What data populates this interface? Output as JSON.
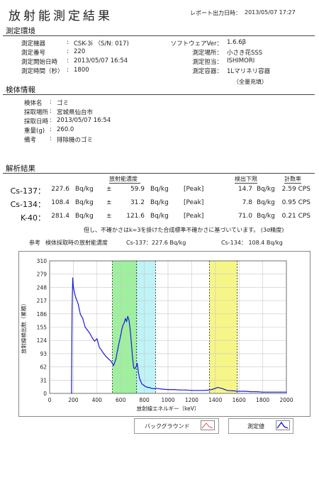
{
  "header": {
    "title": "放射能測定結果",
    "report_label": "レポート出力日時：",
    "report_datetime": "2013/05/07 17:27"
  },
  "measurement_env": {
    "section_title": "測定環境",
    "left": [
      {
        "label": "測定機器",
        "value": "CSK-3i （S/N: 017)"
      },
      {
        "label": "測定番号",
        "value": "220"
      },
      {
        "label": "測定開始日時",
        "value": "2013/05/07 16:54"
      },
      {
        "label": "測定時間（秒）",
        "value": "1800"
      }
    ],
    "right": [
      {
        "label": "ソフトウェアVer：",
        "value": "1.6.6β"
      },
      {
        "label": "測定場所：",
        "value": "小さき花SSS"
      },
      {
        "label": "測定担当：",
        "value": "ISHIMORI"
      },
      {
        "label": "測定容器：",
        "value": "1Lマリネリ容器"
      }
    ],
    "container_note": "（全量充填）"
  },
  "sample_info": {
    "section_title": "検体情報",
    "rows": [
      {
        "label": "検体名",
        "value": "ゴミ"
      },
      {
        "label": "採取場所",
        "value": "宮城県仙台市"
      },
      {
        "label": "採取日時",
        "value": "2013/05/07 16:54"
      },
      {
        "label": "重量(g)",
        "value": "260.0"
      },
      {
        "label": "備考",
        "value": "排除機のゴミ"
      }
    ]
  },
  "analysis": {
    "section_title": "解析結果",
    "col_concentration": "放射能濃度",
    "col_detection_limit": "検出下限",
    "col_count_rate": "計数率",
    "rows": [
      {
        "nuclide": "Cs-137：",
        "value": "227.6",
        "unit": "Bq/kg",
        "pm": "±",
        "err": "59.9",
        "err_unit": "Bq/kg",
        "flag": "[Peak]",
        "limit": "14.7",
        "limit_unit": "Bq/kg",
        "cps": "2.59 CPS"
      },
      {
        "nuclide": "Cs-134：",
        "value": "108.4",
        "unit": "Bq/kg",
        "pm": "±",
        "err": "31.2",
        "err_unit": "Bq/kg",
        "flag": "[Peak]",
        "limit": "7.8",
        "limit_unit": "Bq/kg",
        "cps": "0.95 CPS"
      },
      {
        "nuclide": "K-40：",
        "value": "281.4",
        "unit": "Bq/kg",
        "pm": "±",
        "err": "121.6",
        "err_unit": "Bq/kg",
        "flag": "[Peak]",
        "limit": "71.0",
        "limit_unit": "Bq/kg",
        "cps": "0.21 CPS"
      }
    ],
    "note": "但し、不確かさはk=3を掛けた合成標準不確かさに基づいています。 (3σ精度)",
    "ref_label": "参考",
    "ref_title": "検体採取時の放射能濃度",
    "ref_cs137": "Cs-137：227.6 Bq/kg",
    "ref_cs134": "Cs-134： 108.4 Bq/kg"
  },
  "legend": {
    "background_label": "バックグラウンド",
    "measured_label": "測定値"
  },
  "chart_data": {
    "type": "line",
    "title": "",
    "xlabel": "放射線エネルギー（keV）",
    "ylabel": "放射線検出数（累積）",
    "xlim": [
      0,
      2000
    ],
    "ylim": [
      0,
      310
    ],
    "xticks": [
      0,
      200,
      400,
      600,
      800,
      1000,
      1200,
      1400,
      1600,
      1800,
      2000
    ],
    "yticks": [
      0,
      31,
      62,
      93,
      124,
      155,
      186,
      217,
      248,
      279,
      310
    ],
    "grid": true,
    "series": [
      {
        "color": "#1a1adc",
        "x": [
          185,
          190,
          195,
          200,
          210,
          220,
          240,
          260,
          280,
          300,
          320,
          340,
          360,
          380,
          400,
          420,
          440,
          460,
          480,
          500,
          520,
          540,
          560,
          580,
          600,
          610,
          620,
          630,
          640,
          650,
          660,
          670,
          680,
          690,
          700,
          710,
          720,
          730,
          740,
          750,
          760,
          770,
          780,
          790,
          800,
          810,
          820,
          830,
          840,
          850,
          860,
          880,
          900,
          950,
          1000,
          1050,
          1100,
          1150,
          1200,
          1250,
          1300,
          1350,
          1380,
          1400,
          1420,
          1450,
          1480,
          1500,
          1550,
          1600,
          1650,
          1700,
          1750,
          1800,
          1850,
          1900,
          1950,
          2000
        ],
        "y": [
          0,
          200,
          270,
          250,
          235,
          225,
          210,
          185,
          175,
          155,
          148,
          140,
          130,
          122,
          128,
          108,
          100,
          92,
          85,
          80,
          75,
          65,
          80,
          110,
          135,
          150,
          160,
          165,
          175,
          168,
          180,
          172,
          150,
          120,
          85,
          60,
          58,
          62,
          70,
          48,
          35,
          28,
          22,
          20,
          18,
          16,
          15,
          14,
          14,
          13,
          12,
          11,
          12,
          10,
          9,
          9,
          8,
          8,
          7,
          7,
          7,
          8,
          10,
          12,
          14,
          12,
          9,
          7,
          6,
          5,
          5,
          4,
          4,
          3,
          3,
          3,
          3,
          3
        ]
      }
    ],
    "regions": [
      {
        "from": 530,
        "to": 735,
        "color": "#9ef09e"
      },
      {
        "from": 735,
        "to": 895,
        "color": "#bff3f6"
      },
      {
        "from": 1350,
        "to": 1585,
        "color": "#f6f688"
      }
    ],
    "axis_box": {
      "left": 1,
      "right": 1
    }
  }
}
